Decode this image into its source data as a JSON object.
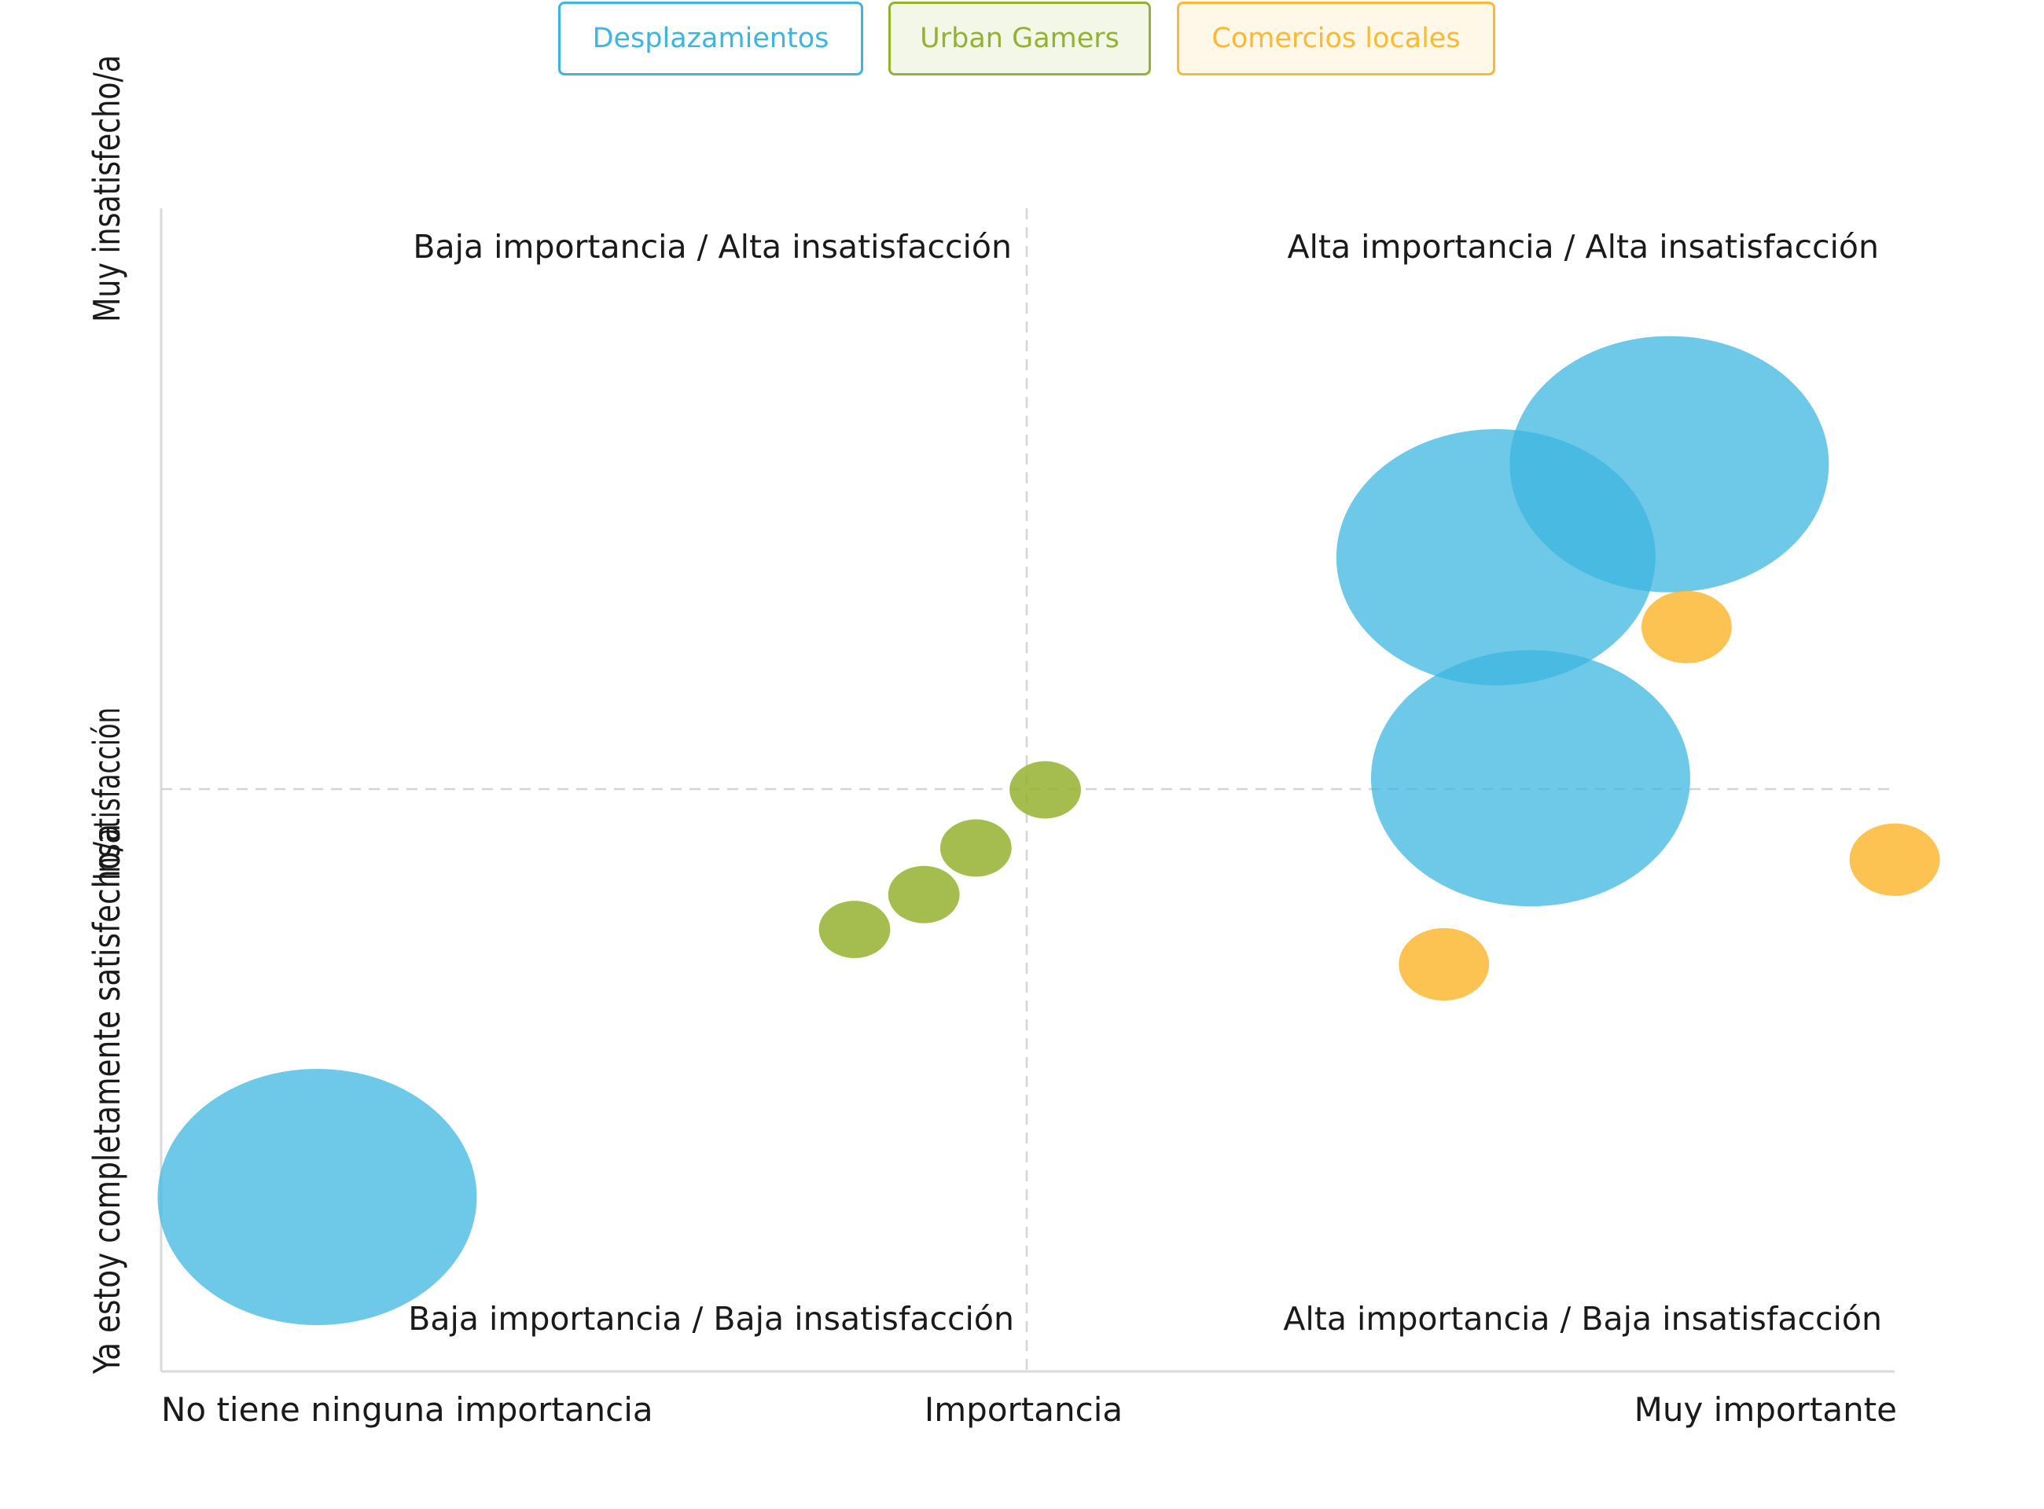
{
  "legend": {
    "items": [
      {
        "label": "Desplazamientos",
        "color": "#3db5df",
        "bg": "#ffffff"
      },
      {
        "label": "Urban Gamers",
        "color": "#94b22f",
        "bg": "#f3f7e8"
      },
      {
        "label": "Comercios locales",
        "color": "#fbb934",
        "bg": "#fff7e8"
      }
    ]
  },
  "chart_data": {
    "type": "scatter",
    "subtype": "bubble",
    "xlabel": "Importancia",
    "ylabel": "Insatisfacción",
    "x_min_label": "No tiene ninguna importancia",
    "x_max_label": "Muy importante",
    "y_min_label": "Ya estoy completamente satisfecho/a",
    "y_max_label": "Muy insatisfecho/a",
    "xlim": [
      0,
      1
    ],
    "ylim": [
      0,
      1
    ],
    "grid": false,
    "legend_position": "top-center",
    "quadrants": {
      "top_left": "Baja importancia / Alta insatisfacción",
      "top_right": "Alta importancia / Alta insatisfacción",
      "bottom_left": "Baja importancia / Baja insatisfacción",
      "bottom_right": "Alta importancia / Baja insatisfacción"
    },
    "series": [
      {
        "name": "Desplazamientos",
        "color": "#3db5df",
        "points": [
          {
            "x": 0.09,
            "y": 0.15,
            "size": 1
          },
          {
            "x": 0.77,
            "y": 0.7,
            "size": 1
          },
          {
            "x": 0.87,
            "y": 0.78,
            "size": 1
          },
          {
            "x": 0.79,
            "y": 0.51,
            "size": 1
          }
        ]
      },
      {
        "name": "Urban Gamers",
        "color": "#94b22f",
        "points": [
          {
            "x": 0.4,
            "y": 0.38,
            "size": 0.05
          },
          {
            "x": 0.44,
            "y": 0.41,
            "size": 0.05
          },
          {
            "x": 0.47,
            "y": 0.45,
            "size": 0.05
          },
          {
            "x": 0.51,
            "y": 0.5,
            "size": 0.05
          }
        ]
      },
      {
        "name": "Comercios locales",
        "color": "#fbb934",
        "points": [
          {
            "x": 0.74,
            "y": 0.35,
            "size": 0.08
          },
          {
            "x": 0.88,
            "y": 0.64,
            "size": 0.08
          },
          {
            "x": 1.0,
            "y": 0.44,
            "size": 0.08
          }
        ]
      }
    ]
  }
}
